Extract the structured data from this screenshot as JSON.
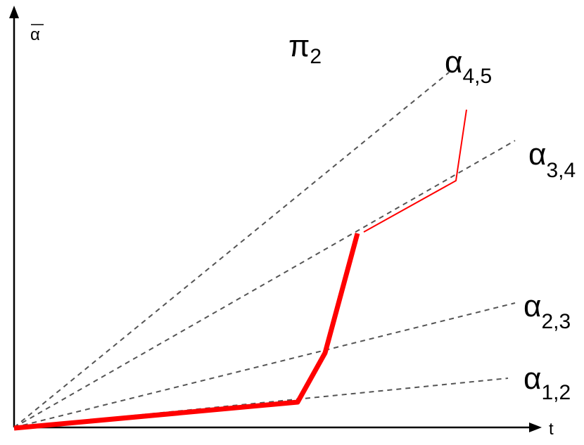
{
  "diagram": {
    "title": "π",
    "title_sub": "2",
    "y_axis_label": "α",
    "x_axis_label": "t",
    "colors": {
      "axis": "#000000",
      "ray": "#555555",
      "path": "#ff0000"
    },
    "rays": [
      {
        "label": "α",
        "sub": "4,5"
      },
      {
        "label": "α",
        "sub": "3,4"
      },
      {
        "label": "α",
        "sub": "2,3"
      },
      {
        "label": "α",
        "sub": "1,2"
      }
    ]
  }
}
